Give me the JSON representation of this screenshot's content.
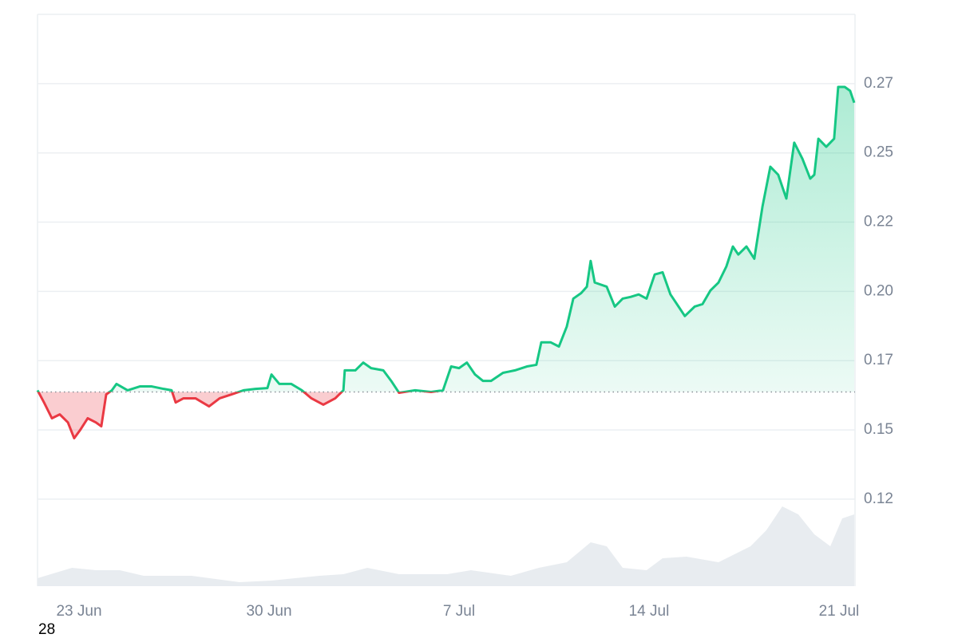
{
  "chart_data": {
    "type": "line",
    "x": [
      21.47,
      21.71,
      22.0,
      22.29,
      22.59,
      22.82,
      23.03,
      23.32,
      23.62,
      23.82,
      24.0,
      24.21,
      24.38,
      24.79,
      25.24,
      25.68,
      26.12,
      26.41,
      26.56,
      26.85,
      27.29,
      27.79,
      28.18,
      28.62,
      29.06,
      29.5,
      29.94,
      30.09,
      30.38,
      30.82,
      31.21,
      31.56,
      32.0,
      32.44,
      32.74,
      32.79,
      33.18,
      33.47,
      33.76,
      34.21,
      34.5,
      34.79,
      35.38,
      35.97,
      36.41,
      36.71,
      37.0,
      37.29,
      37.59,
      37.88,
      38.18,
      38.62,
      39.06,
      39.5,
      39.85,
      40.03,
      40.38,
      40.68,
      40.97,
      41.21,
      41.5,
      41.71,
      41.85,
      42.0,
      42.44,
      42.74,
      43.03,
      43.32,
      43.62,
      43.91,
      44.21,
      44.5,
      44.79,
      45.09,
      45.32,
      45.68,
      45.97,
      46.26,
      46.56,
      46.85,
      47.09,
      47.29,
      47.59,
      47.88,
      48.18,
      48.47,
      48.76,
      49.06,
      49.35,
      49.65,
      49.94,
      50.09,
      50.24,
      50.53,
      50.82,
      50.97,
      51.21,
      51.41,
      51.56
    ],
    "values": [
      0.1643,
      0.1599,
      0.1542,
      0.1556,
      0.1527,
      0.147,
      0.1498,
      0.1542,
      0.1527,
      0.1513,
      0.1628,
      0.1643,
      0.1666,
      0.1643,
      0.1657,
      0.1657,
      0.1648,
      0.1643,
      0.1599,
      0.1614,
      0.1614,
      0.1585,
      0.1614,
      0.1628,
      0.1643,
      0.1648,
      0.1651,
      0.17,
      0.1666,
      0.1666,
      0.1643,
      0.1614,
      0.1591,
      0.1614,
      0.1643,
      0.1715,
      0.1715,
      0.1743,
      0.1723,
      0.1715,
      0.1677,
      0.1634,
      0.1643,
      0.1637,
      0.1643,
      0.1729,
      0.1723,
      0.1743,
      0.17,
      0.1677,
      0.1677,
      0.1706,
      0.1715,
      0.1729,
      0.1735,
      0.1816,
      0.1816,
      0.1801,
      0.1873,
      0.1974,
      0.1994,
      0.2017,
      0.211,
      0.2032,
      0.2017,
      0.1945,
      0.1974,
      0.198,
      0.1989,
      0.1974,
      0.2061,
      0.2069,
      0.1989,
      0.1945,
      0.1911,
      0.1945,
      0.1954,
      0.2003,
      0.2032,
      0.209,
      0.2162,
      0.2133,
      0.2162,
      0.2118,
      0.2306,
      0.245,
      0.2421,
      0.2335,
      0.2537,
      0.2479,
      0.2407,
      0.2421,
      0.2551,
      0.2522,
      0.2551,
      0.2738,
      0.2738,
      0.2724,
      0.2681
    ],
    "up_color": "#16c784",
    "down_color": "#ea3943",
    "baseline": 0.1637,
    "volume": {
      "x": [
        21.47,
        22.74,
        23.62,
        24.5,
        25.38,
        27.15,
        28.91,
        30.09,
        31.85,
        32.74,
        33.62,
        34.79,
        36.56,
        37.44,
        38.91,
        39.94,
        40.97,
        41.85,
        42.44,
        43.03,
        43.91,
        44.5,
        45.38,
        46.56,
        47.74,
        48.32,
        48.91,
        49.5,
        50.09,
        50.68,
        51.12,
        51.56
      ],
      "values": [
        10,
        23,
        20,
        20,
        13,
        13,
        5,
        7,
        13,
        15,
        23,
        15,
        15,
        20,
        13,
        23,
        30,
        55,
        50,
        23,
        20,
        35,
        37,
        30,
        50,
        70,
        100,
        90,
        65,
        50,
        85,
        90
      ],
      "color": "#e8ecf0"
    },
    "xlim": [
      21.47,
      51.59
    ],
    "xticks": [
      {
        "value": 23,
        "label": "23 Jun"
      },
      {
        "value": 30,
        "label": "30 Jun"
      },
      {
        "value": 37,
        "label": "7 Jul"
      },
      {
        "value": 44,
        "label": "14 Jul"
      },
      {
        "value": 51,
        "label": "21 Jul"
      }
    ],
    "ylim": [
      0.0936,
      0.3
    ],
    "yticks": [
      {
        "value": 0.125,
        "label": "0.12"
      },
      0.15,
      {
        "value": 0.175,
        "label": "0.17"
      },
      {
        "value": 0.2,
        "label": "0.20"
      },
      {
        "value": 0.225,
        "label": "0.22"
      },
      0.25,
      {
        "value": 0.275,
        "label": "0.27"
      }
    ],
    "grid": true,
    "footer_text": "28"
  }
}
